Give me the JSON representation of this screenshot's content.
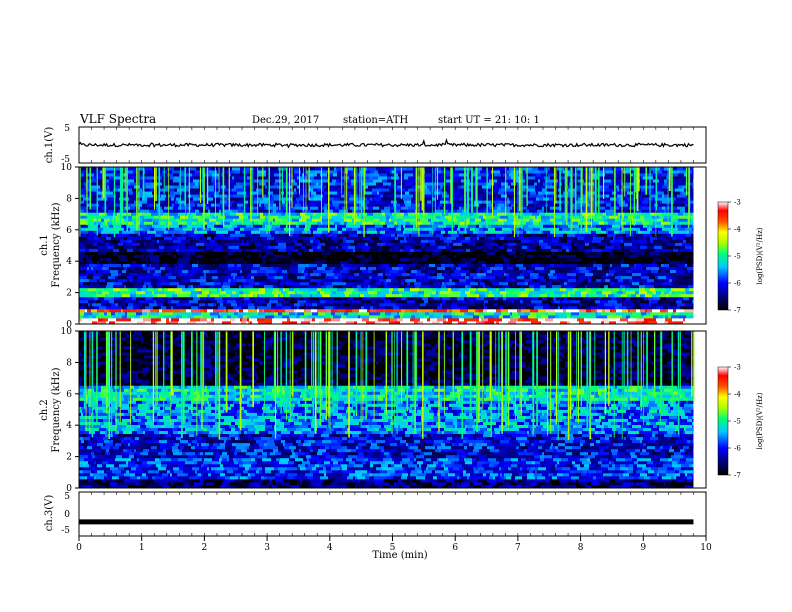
{
  "header": {
    "title": "VLF  Spectra",
    "date": "Dec.29, 2017",
    "station": "station=ATH",
    "start": "start  UT  =    21: 10: 1"
  },
  "chart_data": [
    {
      "type": "line",
      "name": "ch1-waveform",
      "ylabel": "ch.1(V)",
      "ylim": [
        -5,
        5
      ],
      "yticks": [
        "5",
        "-5"
      ],
      "xlim": [
        0,
        10
      ],
      "x_end": 9.8,
      "trace_level": 0.0
    },
    {
      "type": "heatmap",
      "name": "ch1-spectrogram",
      "ylabel": "ch.1\nFrequency (kHz)",
      "ylim": [
        0,
        10
      ],
      "yticks": [
        "0",
        "2",
        "4",
        "6",
        "8",
        "10"
      ],
      "xlim": [
        0,
        10
      ],
      "x_end": 9.8,
      "colorbar": {
        "label": "log(PSD)(V²/Hz)",
        "range": [
          -7,
          -3
        ],
        "ticks": [
          "-3",
          "-4",
          "-5",
          "-6",
          "-7"
        ]
      },
      "bands_khz": [
        {
          "from": 0.0,
          "to": 0.3,
          "level": -3.0
        },
        {
          "from": 0.3,
          "to": 0.7,
          "level": -5.2
        },
        {
          "from": 0.7,
          "to": 0.9,
          "level": -3.4
        },
        {
          "from": 0.9,
          "to": 1.8,
          "level": -6.3
        },
        {
          "from": 1.8,
          "to": 2.3,
          "level": -5.0
        },
        {
          "from": 2.3,
          "to": 3.8,
          "level": -6.2
        },
        {
          "from": 3.8,
          "to": 4.6,
          "level": -7.0
        },
        {
          "from": 4.6,
          "to": 5.8,
          "level": -6.3
        },
        {
          "from": 5.8,
          "to": 6.3,
          "level": -5.6
        },
        {
          "from": 6.3,
          "to": 7.2,
          "level": -5.1
        },
        {
          "from": 7.2,
          "to": 10.0,
          "level": -6.0
        }
      ]
    },
    {
      "type": "heatmap",
      "name": "ch2-spectrogram",
      "ylabel": "ch.2\nFrequency (kHz)",
      "ylim": [
        0,
        10
      ],
      "yticks": [
        "0",
        "2",
        "4",
        "6",
        "8",
        "10"
      ],
      "xlim": [
        0,
        10
      ],
      "x_end": 9.8,
      "colorbar": {
        "label": "log(PSD)(V²/Hz)",
        "range": [
          -7,
          -3
        ],
        "ticks": [
          "-3",
          "-4",
          "-5",
          "-6",
          "-7"
        ]
      },
      "bands_khz": [
        {
          "from": 0.0,
          "to": 0.5,
          "level": -6.6
        },
        {
          "from": 0.5,
          "to": 2.0,
          "level": -5.9
        },
        {
          "from": 2.0,
          "to": 3.5,
          "level": -6.1
        },
        {
          "from": 3.5,
          "to": 5.5,
          "level": -5.6
        },
        {
          "from": 5.5,
          "to": 6.6,
          "level": -5.2
        },
        {
          "from": 6.6,
          "to": 10.0,
          "level": -6.8
        }
      ]
    },
    {
      "type": "line",
      "name": "ch3-waveform",
      "ylabel": "ch.3(V)",
      "ylim": [
        -5,
        5
      ],
      "yticks": [
        "5",
        "0",
        "-5"
      ],
      "xlim": [
        0,
        10
      ],
      "x_end": 9.8,
      "trace_level": -1.8,
      "xlabel": "Time  (min)",
      "xticks": [
        "0",
        "1",
        "2",
        "3",
        "4",
        "5",
        "6",
        "7",
        "8",
        "9",
        "10"
      ]
    }
  ],
  "colors": {
    "colormap": [
      "#000000",
      "#000064",
      "#0000ff",
      "#00c8ff",
      "#00ff78",
      "#aaff00",
      "#ffff00",
      "#ff5000",
      "#ff0000",
      "#ffffff"
    ],
    "trace": "#000000"
  }
}
